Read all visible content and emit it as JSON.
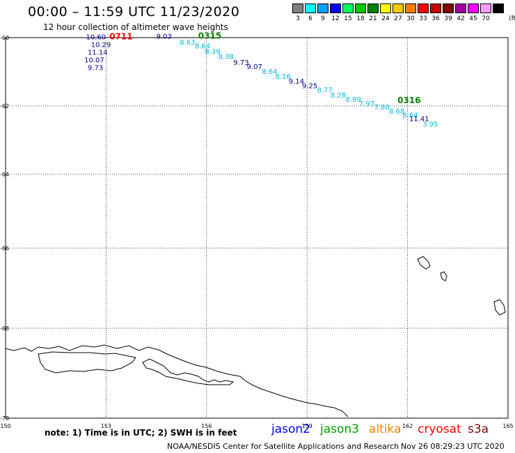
{
  "header": {
    "title": "00:00 – 11:59 UTC 11/23/2020",
    "subtitle": "12 hour collection of altimeter wave heights"
  },
  "legend": {
    "unit": "(ft)",
    "items": [
      {
        "label": "3",
        "color": "#808080"
      },
      {
        "label": "6",
        "color": "#00ffff"
      },
      {
        "label": "9",
        "color": "#00a0ff"
      },
      {
        "label": "12",
        "color": "#0000ff"
      },
      {
        "label": "15",
        "color": "#00ff60"
      },
      {
        "label": "18",
        "color": "#00c800"
      },
      {
        "label": "21",
        "color": "#008000"
      },
      {
        "label": "24",
        "color": "#ffff00"
      },
      {
        "label": "27",
        "color": "#ffc800"
      },
      {
        "label": "30",
        "color": "#ff8000"
      },
      {
        "label": "33",
        "color": "#ff0000"
      },
      {
        "label": "36",
        "color": "#c80000"
      },
      {
        "label": "39",
        "color": "#800000"
      },
      {
        "label": "42",
        "color": "#a000a0"
      },
      {
        "label": "45",
        "color": "#ff00ff"
      },
      {
        "label": "70",
        "color": "#ff9cff"
      },
      {
        "label": "",
        "color": "#000000"
      }
    ]
  },
  "map": {
    "lon_ticks": [
      "150",
      "153",
      "156",
      "159",
      "162",
      "165"
    ],
    "lat_ticks": [
      "-60",
      "-62",
      "-64",
      "-66",
      "-68",
      "-70"
    ]
  },
  "observations": {
    "columns": [
      "value",
      "lon",
      "lat",
      "color"
    ],
    "rows": [
      [
        "10.60",
        152.4,
        -60.05,
        "#00008b"
      ],
      [
        "10.29",
        152.55,
        -60.28,
        "#00008b"
      ],
      [
        "11.14",
        152.45,
        -60.5,
        "#00008b"
      ],
      [
        "10.07",
        152.35,
        -60.72,
        "#00008b"
      ],
      [
        "9.73",
        152.45,
        -60.95,
        "#00008b"
      ],
      [
        "9.03",
        154.5,
        -60.03,
        "#00008b"
      ],
      [
        "8.63",
        155.2,
        -60.2,
        "#00b8e0"
      ],
      [
        "8.64",
        155.65,
        -60.32,
        "#00b8e0"
      ],
      [
        "8.39",
        155.95,
        -60.48,
        "#00b8e0"
      ],
      [
        "8.38",
        156.35,
        -60.62,
        "#00b8e0"
      ],
      [
        "9.73",
        156.8,
        -60.8,
        "#00008b"
      ],
      [
        "9.07",
        157.2,
        -60.92,
        "#00008b"
      ],
      [
        "8.64",
        157.65,
        -61.06,
        "#00b8e0"
      ],
      [
        "8.16",
        158.05,
        -61.2,
        "#00b8e0"
      ],
      [
        "9.14",
        158.45,
        -61.35,
        "#00008b"
      ],
      [
        "9.25",
        158.85,
        -61.48,
        "#00008b"
      ],
      [
        "8.77",
        159.3,
        -61.6,
        "#00b8e0"
      ],
      [
        "8.28",
        159.7,
        -61.75,
        "#00b8e0"
      ],
      [
        "8.89",
        160.15,
        -61.88,
        "#00b8e0"
      ],
      [
        "7.97",
        160.55,
        -62.0,
        "#00b8e0"
      ],
      [
        "7.80",
        161.0,
        -62.1,
        "#00b8e0"
      ],
      [
        "8.68",
        161.45,
        -62.22,
        "#00b8e0"
      ],
      [
        "8.64",
        161.85,
        -62.34,
        "#00b8e0"
      ],
      [
        "11.41",
        162.05,
        -62.45,
        "#00008b"
      ],
      [
        "3.95",
        162.45,
        -62.6,
        "#00b8e0"
      ]
    ]
  },
  "pass_labels": [
    {
      "text": "0711",
      "lon": 153.1,
      "lat": -60.05,
      "color": "#ff0000"
    },
    {
      "text": "0315",
      "lon": 155.75,
      "lat": -60.03,
      "color": "#008000"
    },
    {
      "text": "0316",
      "lon": 161.7,
      "lat": -61.92,
      "color": "#008000"
    }
  ],
  "footer": {
    "note": "note: 1) Time is in UTC; 2) SWH is in feet",
    "satellites": [
      {
        "name": "jason2",
        "color": "#0000ff"
      },
      {
        "name": "jason3",
        "color": "#00a000"
      },
      {
        "name": "altika",
        "color": "#ff8000"
      },
      {
        "name": "cryosat",
        "color": "#ff0000"
      },
      {
        "name": "s3a",
        "color": "#800000"
      }
    ],
    "credit": "NOAA/NESDIS Center for Satellite Applications and Research",
    "timestamp": "Nov 26 08:29:23 UTC 2020"
  }
}
